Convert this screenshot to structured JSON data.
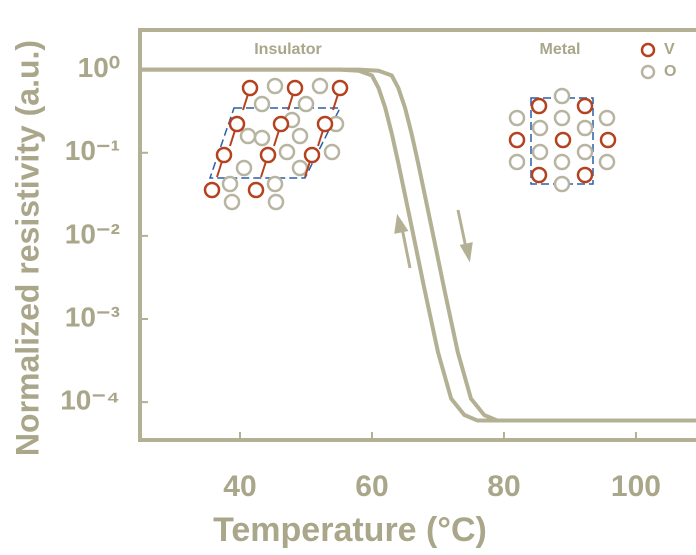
{
  "chart_data": {
    "type": "line",
    "xlabel": "Temperature (°C)",
    "ylabel": "Normalized resistivity (a.u.)",
    "yscale": "log",
    "xlim": [
      24.85,
      109.1
    ],
    "xticks": [
      40,
      60,
      80,
      100
    ],
    "ylim": [
      3,
      3.5e-05
    ],
    "yticks": [
      {
        "value": 1,
        "label": "10⁰"
      },
      {
        "value": 0.1,
        "label": "10⁻¹"
      },
      {
        "value": 0.01,
        "label": "10⁻²"
      },
      {
        "value": 0.001,
        "label": "10⁻³"
      },
      {
        "value": 0.0001,
        "label": "10⁻⁴"
      }
    ],
    "series": [
      {
        "color": "#b3b094",
        "x": [
          25,
          55,
          58,
          60,
          61,
          62,
          63,
          64,
          66,
          68,
          70,
          72,
          74,
          76,
          109.1
        ],
        "values": [
          1,
          1,
          0.97,
          0.85,
          0.6,
          0.35,
          0.17,
          0.075,
          0.013,
          0.0022,
          0.0004,
          0.00011,
          7e-05,
          6e-05,
          6e-05
        ]
      },
      {
        "color": "#b3b094",
        "x": [
          25,
          58,
          61,
          63,
          64,
          65,
          66,
          67,
          69,
          71,
          73,
          75,
          77,
          79,
          109.1
        ],
        "values": [
          1,
          1,
          0.97,
          0.85,
          0.6,
          0.35,
          0.17,
          0.075,
          0.013,
          0.0022,
          0.0004,
          0.00011,
          7e-05,
          6e-05,
          6e-05
        ]
      }
    ],
    "annotations": [
      "Insulator",
      "Metal"
    ],
    "legend": [
      {
        "name": "V",
        "color": "#b5421f"
      },
      {
        "name": "O",
        "color": "#b8b4a2"
      }
    ]
  }
}
